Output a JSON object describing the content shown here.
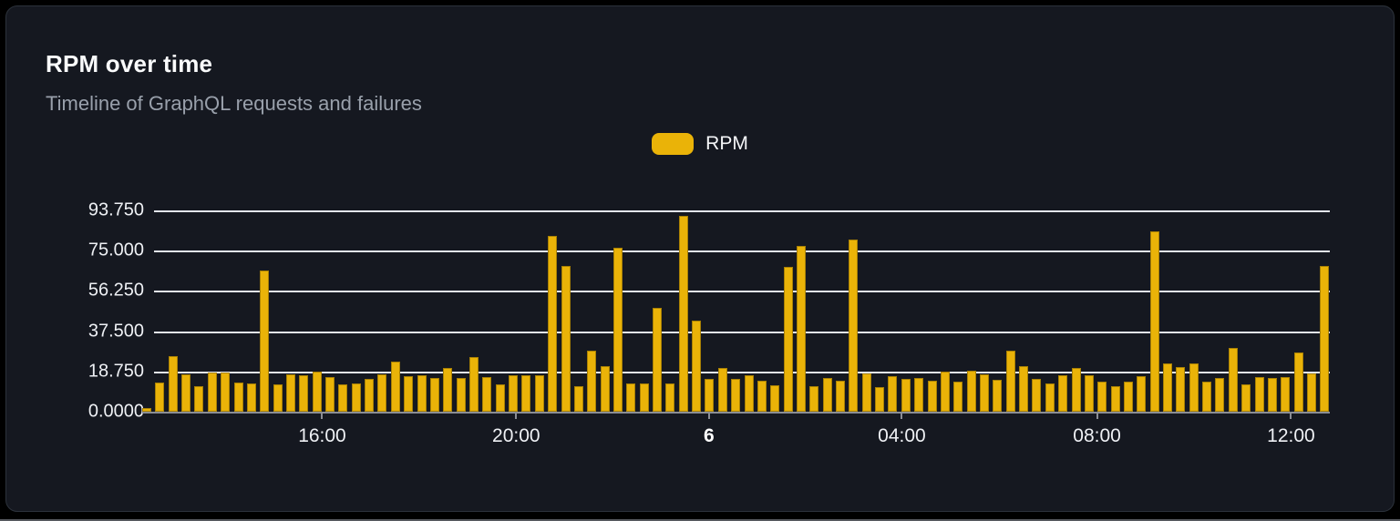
{
  "header": {
    "title": "RPM over time",
    "subtitle": "Timeline of GraphQL requests and failures"
  },
  "legend": {
    "items": [
      {
        "label": "RPM",
        "color": "#eab308"
      }
    ]
  },
  "colors": {
    "bar": "#eab308",
    "grid": "#e2e5ee",
    "axis": "#8b8e95",
    "card_bg": "#151820",
    "card_border": "#2c323b",
    "title_text": "#fafbfc",
    "subtitle_text": "#99a0ab"
  },
  "chart_data": {
    "type": "bar",
    "title": "RPM over time",
    "xlabel": "",
    "ylabel": "",
    "ylim": [
      0,
      93.75
    ],
    "grid": "horizontal",
    "legend_position": "top-center",
    "y_tick_labels_top_to_bottom": [
      "93.750",
      "75.000",
      "56.250",
      "37.500",
      "18.750",
      "0.0000"
    ],
    "x_ticks": [
      {
        "label": "16:00",
        "pos_pct": 14.3,
        "bold": false
      },
      {
        "label": "20:00",
        "pos_pct": 30.8,
        "bold": false
      },
      {
        "label": "6",
        "pos_pct": 47.2,
        "bold": true
      },
      {
        "label": "04:00",
        "pos_pct": 63.6,
        "bold": false
      },
      {
        "label": "08:00",
        "pos_pct": 80.2,
        "bold": false
      },
      {
        "label": "12:00",
        "pos_pct": 96.7,
        "bold": false
      }
    ],
    "series": [
      {
        "name": "RPM",
        "values": [
          1.5,
          13.4,
          26.0,
          17.3,
          11.7,
          18.2,
          18.2,
          13.4,
          13.0,
          65.8,
          12.8,
          17.5,
          16.8,
          18.8,
          16.0,
          12.8,
          13.0,
          15.4,
          17.2,
          23.2,
          16.6,
          17.0,
          15.9,
          20.3,
          15.9,
          25.4,
          16.0,
          12.8,
          16.8,
          17.0,
          17.0,
          82.0,
          67.8,
          11.8,
          28.4,
          21.3,
          76.4,
          13.2,
          13.0,
          48.4,
          13.0,
          91.3,
          42.6,
          15.2,
          20.2,
          15.2,
          17.0,
          14.6,
          12.4,
          67.6,
          77.4,
          11.8,
          15.9,
          14.6,
          80.1,
          17.8,
          11.4,
          16.6,
          15.2,
          15.9,
          14.6,
          18.5,
          14.2,
          19.2,
          17.5,
          14.9,
          28.4,
          21.3,
          15.3,
          13.2,
          17.0,
          20.3,
          16.8,
          13.9,
          11.8,
          13.9,
          16.6,
          83.8,
          22.7,
          20.9,
          22.4,
          13.9,
          15.6,
          29.8,
          12.8,
          16.3,
          15.6,
          16.0,
          27.7,
          17.8,
          68.0
        ]
      }
    ]
  }
}
